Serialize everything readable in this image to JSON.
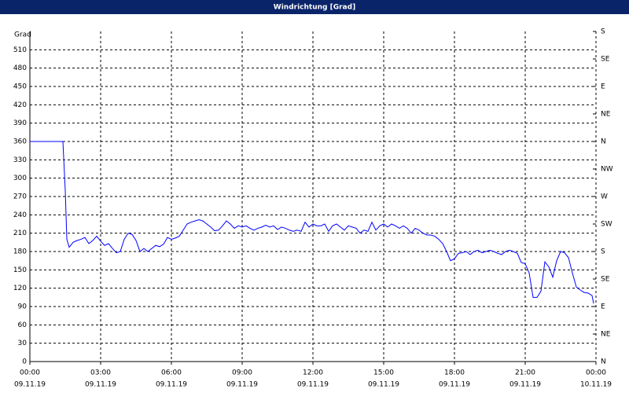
{
  "chart_data": {
    "type": "line",
    "title": "Windrichtung [Grad]",
    "y_label": "Grad",
    "x": [
      0,
      84,
      90,
      94,
      100,
      110,
      120,
      130,
      140,
      150,
      160,
      170,
      180,
      190,
      200,
      210,
      220,
      230,
      240,
      250,
      260,
      270,
      280,
      290,
      300,
      310,
      320,
      330,
      340,
      350,
      360,
      370,
      380,
      390,
      400,
      410,
      420,
      430,
      440,
      450,
      460,
      470,
      480,
      490,
      500,
      510,
      520,
      530,
      540,
      550,
      560,
      570,
      580,
      590,
      600,
      610,
      620,
      630,
      640,
      650,
      660,
      670,
      680,
      690,
      700,
      710,
      720,
      730,
      740,
      750,
      760,
      770,
      780,
      790,
      800,
      810,
      820,
      830,
      840,
      850,
      860,
      870,
      880,
      890,
      900,
      910,
      920,
      930,
      940,
      950,
      960,
      970,
      980,
      990,
      1000,
      1010,
      1020,
      1030,
      1040,
      1050,
      1060,
      1070,
      1080,
      1090,
      1100,
      1110,
      1120,
      1130,
      1140,
      1150,
      1160,
      1170,
      1180,
      1190,
      1200,
      1210,
      1220,
      1230,
      1240,
      1250,
      1260,
      1270,
      1280,
      1290,
      1300,
      1310,
      1320,
      1330,
      1340,
      1350,
      1360,
      1370,
      1380,
      1390,
      1400,
      1410,
      1420,
      1430,
      1434
    ],
    "series": [
      {
        "color": "#0000ff",
        "values": [
          360,
          360,
          280,
          200,
          187,
          195,
          198,
          200,
          203,
          193,
          198,
          205,
          197,
          190,
          193,
          185,
          178,
          180,
          200,
          210,
          208,
          198,
          180,
          185,
          180,
          185,
          190,
          188,
          192,
          203,
          200,
          202,
          205,
          215,
          225,
          228,
          230,
          232,
          230,
          225,
          220,
          214,
          215,
          222,
          230,
          225,
          218,
          222,
          220,
          222,
          218,
          215,
          218,
          220,
          223,
          220,
          222,
          216,
          220,
          218,
          215,
          213,
          215,
          213,
          228,
          220,
          225,
          222,
          222,
          225,
          213,
          222,
          225,
          220,
          215,
          222,
          220,
          218,
          210,
          215,
          213,
          228,
          215,
          222,
          225,
          220,
          225,
          222,
          218,
          222,
          218,
          210,
          218,
          215,
          210,
          207,
          207,
          205,
          200,
          193,
          180,
          165,
          168,
          177,
          178,
          180,
          175,
          180,
          182,
          178,
          180,
          182,
          180,
          177,
          175,
          180,
          182,
          180,
          177,
          162,
          160,
          145,
          105,
          105,
          115,
          163,
          155,
          138,
          165,
          180,
          178,
          170,
          145,
          122,
          117,
          113,
          112,
          108,
          95
        ]
      }
    ],
    "xlim": [
      0,
      1440
    ],
    "xticks": [
      {
        "value": 0,
        "label": "00:00"
      },
      {
        "value": 180,
        "label": "03:00"
      },
      {
        "value": 360,
        "label": "06:00"
      },
      {
        "value": 540,
        "label": "09:00"
      },
      {
        "value": 720,
        "label": "12:00"
      },
      {
        "value": 900,
        "label": "15:00"
      },
      {
        "value": 1080,
        "label": "18:00"
      },
      {
        "value": 1260,
        "label": "21:00"
      },
      {
        "value": 1440,
        "label": "00:00"
      }
    ],
    "xtick_dates": [
      "09.11.19",
      "09.11.19",
      "09.11.19",
      "09.11.19",
      "09.11.19",
      "09.11.19",
      "09.11.19",
      "09.11.19",
      "10.11.19"
    ],
    "ylim": [
      0,
      540
    ],
    "yticks": [
      0,
      30,
      60,
      90,
      120,
      150,
      180,
      210,
      240,
      270,
      300,
      330,
      360,
      390,
      420,
      450,
      480,
      510
    ],
    "y2lim": [
      0,
      540
    ],
    "y2ticks": [
      {
        "value": 0,
        "label": "N"
      },
      {
        "value": 45,
        "label": "NE"
      },
      {
        "value": 90,
        "label": "E"
      },
      {
        "value": 135,
        "label": "SE"
      },
      {
        "value": 180,
        "label": "S"
      },
      {
        "value": 225,
        "label": "SW"
      },
      {
        "value": 270,
        "label": "W"
      },
      {
        "value": 315,
        "label": "NW"
      },
      {
        "value": 360,
        "label": "N"
      },
      {
        "value": 405,
        "label": "NE"
      },
      {
        "value": 450,
        "label": "E"
      },
      {
        "value": 495,
        "label": "SE"
      },
      {
        "value": 540,
        "label": "S"
      }
    ],
    "grid": true
  }
}
